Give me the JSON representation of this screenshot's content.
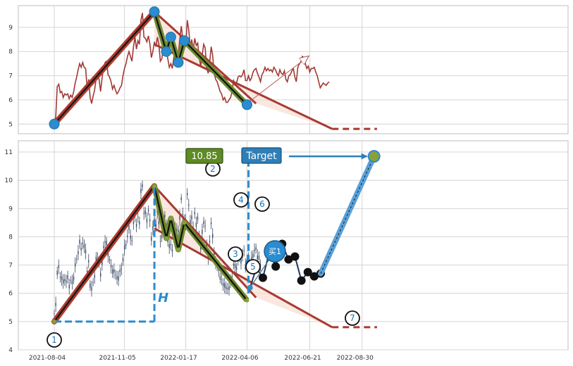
{
  "chart_data": [
    {
      "type": "line",
      "panel": "top",
      "ylim": [
        4.6,
        9.9
      ],
      "yticks": [
        5,
        6,
        7,
        8,
        9
      ],
      "grid": true,
      "series": [
        {
          "values": [
            5.05,
            5.3,
            6.55,
            6.65,
            6.3,
            6.35,
            6.1,
            6.25,
            6.2,
            6.25,
            6.05,
            6.2,
            6.1,
            6.35,
            6.7,
            6.95,
            7.25,
            7.5,
            7.35,
            7.55,
            7.35,
            7.3,
            6.5,
            6.85,
            6.1,
            5.85,
            6.15,
            6.4,
            6.9,
            7.0,
            6.85,
            6.35,
            6.9,
            7.35,
            7.55,
            7.6,
            7.05,
            6.95,
            6.75,
            6.45,
            6.6,
            6.4,
            6.25,
            6.35,
            6.5,
            6.6,
            7.0,
            7.3,
            7.5,
            7.8,
            8.0,
            7.8,
            7.6,
            8.2,
            8.6,
            8.1,
            8.45,
            8.3,
            9.3,
            9.6,
            8.6,
            8.55,
            8.4,
            8.65,
            8.3,
            7.75,
            8.0,
            8.4,
            8.2,
            8.6,
            8.3,
            7.6,
            7.7,
            8.15,
            8.45,
            8.1,
            7.7,
            7.35,
            7.5,
            7.3,
            7.75,
            8.1,
            8.0,
            7.9,
            8.5,
            9.05,
            8.55,
            8.4,
            8.2,
            9.3,
            8.9,
            8.2,
            8.5,
            8.05,
            8.55,
            8.25,
            8.35,
            7.75,
            7.4,
            7.85,
            8.3,
            8.15,
            7.35,
            7.1,
            7.55,
            8.2,
            7.85,
            7.1,
            6.85,
            6.75,
            6.55,
            6.35,
            6.25,
            6.0,
            6.1,
            5.9,
            5.9,
            6.0,
            6.1,
            6.35,
            6.8,
            6.65,
            6.7,
            6.95,
            7.0,
            6.95,
            7.05,
            7.25,
            6.8,
            6.8,
            7.0,
            6.8,
            6.9,
            7.15,
            7.25,
            7.3,
            7.1,
            6.95,
            6.75,
            7.05,
            7.15,
            7.35,
            7.2,
            7.3,
            7.2,
            7.25,
            7.15,
            7.35,
            7.25,
            7.1,
            7.0,
            7.25,
            7.1,
            7.05,
            7.2,
            6.85,
            6.75,
            7.0,
            7.05,
            7.2,
            7.3,
            6.95,
            6.75,
            7.35,
            7.5,
            7.55,
            7.8,
            7.75,
            7.5,
            7.3,
            7.4,
            7.15,
            7.3,
            7.3,
            7.35,
            7.15,
            7.0,
            6.75,
            6.5,
            6.6,
            6.7,
            6.65,
            6.6,
            6.7,
            6.75
          ]
        }
      ],
      "pattern_points": [
        {
          "label": "",
          "index": 0,
          "value": 5.0
        },
        {
          "label": "",
          "index": 67,
          "value": 9.65
        },
        {
          "label": "",
          "index": 75,
          "value": 8.0
        },
        {
          "label": "",
          "index": 78,
          "value": 8.6
        },
        {
          "label": "",
          "index": 83,
          "value": 7.55
        },
        {
          "label": "",
          "index": 87,
          "value": 8.45
        },
        {
          "label": "",
          "index": 129,
          "value": 5.8
        }
      ],
      "target_arrow": {
        "from": {
          "index": 129,
          "value": 5.85
        },
        "to": {
          "index": 170,
          "value": 7.8
        }
      }
    },
    {
      "type": "candlestick",
      "panel": "bottom",
      "ylim": [
        4,
        11.4
      ],
      "yticks": [
        4,
        5,
        6,
        7,
        8,
        9,
        10,
        11
      ],
      "x_tick_labels": [
        "2021-08-04",
        "2021-11-05",
        "2022-01-17",
        "2022-04-06",
        "2022-06-21",
        "2022-08-30"
      ],
      "grid": true,
      "price_label": "10.85",
      "target_label": "Target",
      "measure_label": "H",
      "buy_label": "买1",
      "pattern_points": [
        {
          "label": "1",
          "index": 0,
          "value": 5.0
        },
        {
          "label": "2",
          "index": 67,
          "value": 9.8
        },
        {
          "label": "3",
          "index": 75,
          "value": 7.95
        },
        {
          "label": "4",
          "index": 78,
          "value": 8.65
        },
        {
          "label": "5",
          "index": 83,
          "value": 7.55
        },
        {
          "label": "6",
          "index": 87,
          "value": 8.5
        },
        {
          "label": "7",
          "index": 129,
          "value": 5.75
        }
      ],
      "buy_point": {
        "index": 131,
        "value": 6.2
      },
      "target_point": {
        "index": 214,
        "value": 10.85
      },
      "projection_values": [
        6.2,
        6.9,
        6.55,
        7.45,
        6.95,
        7.75,
        7.2,
        7.3,
        6.45,
        6.75,
        6.6,
        6.7
      ]
    }
  ]
}
